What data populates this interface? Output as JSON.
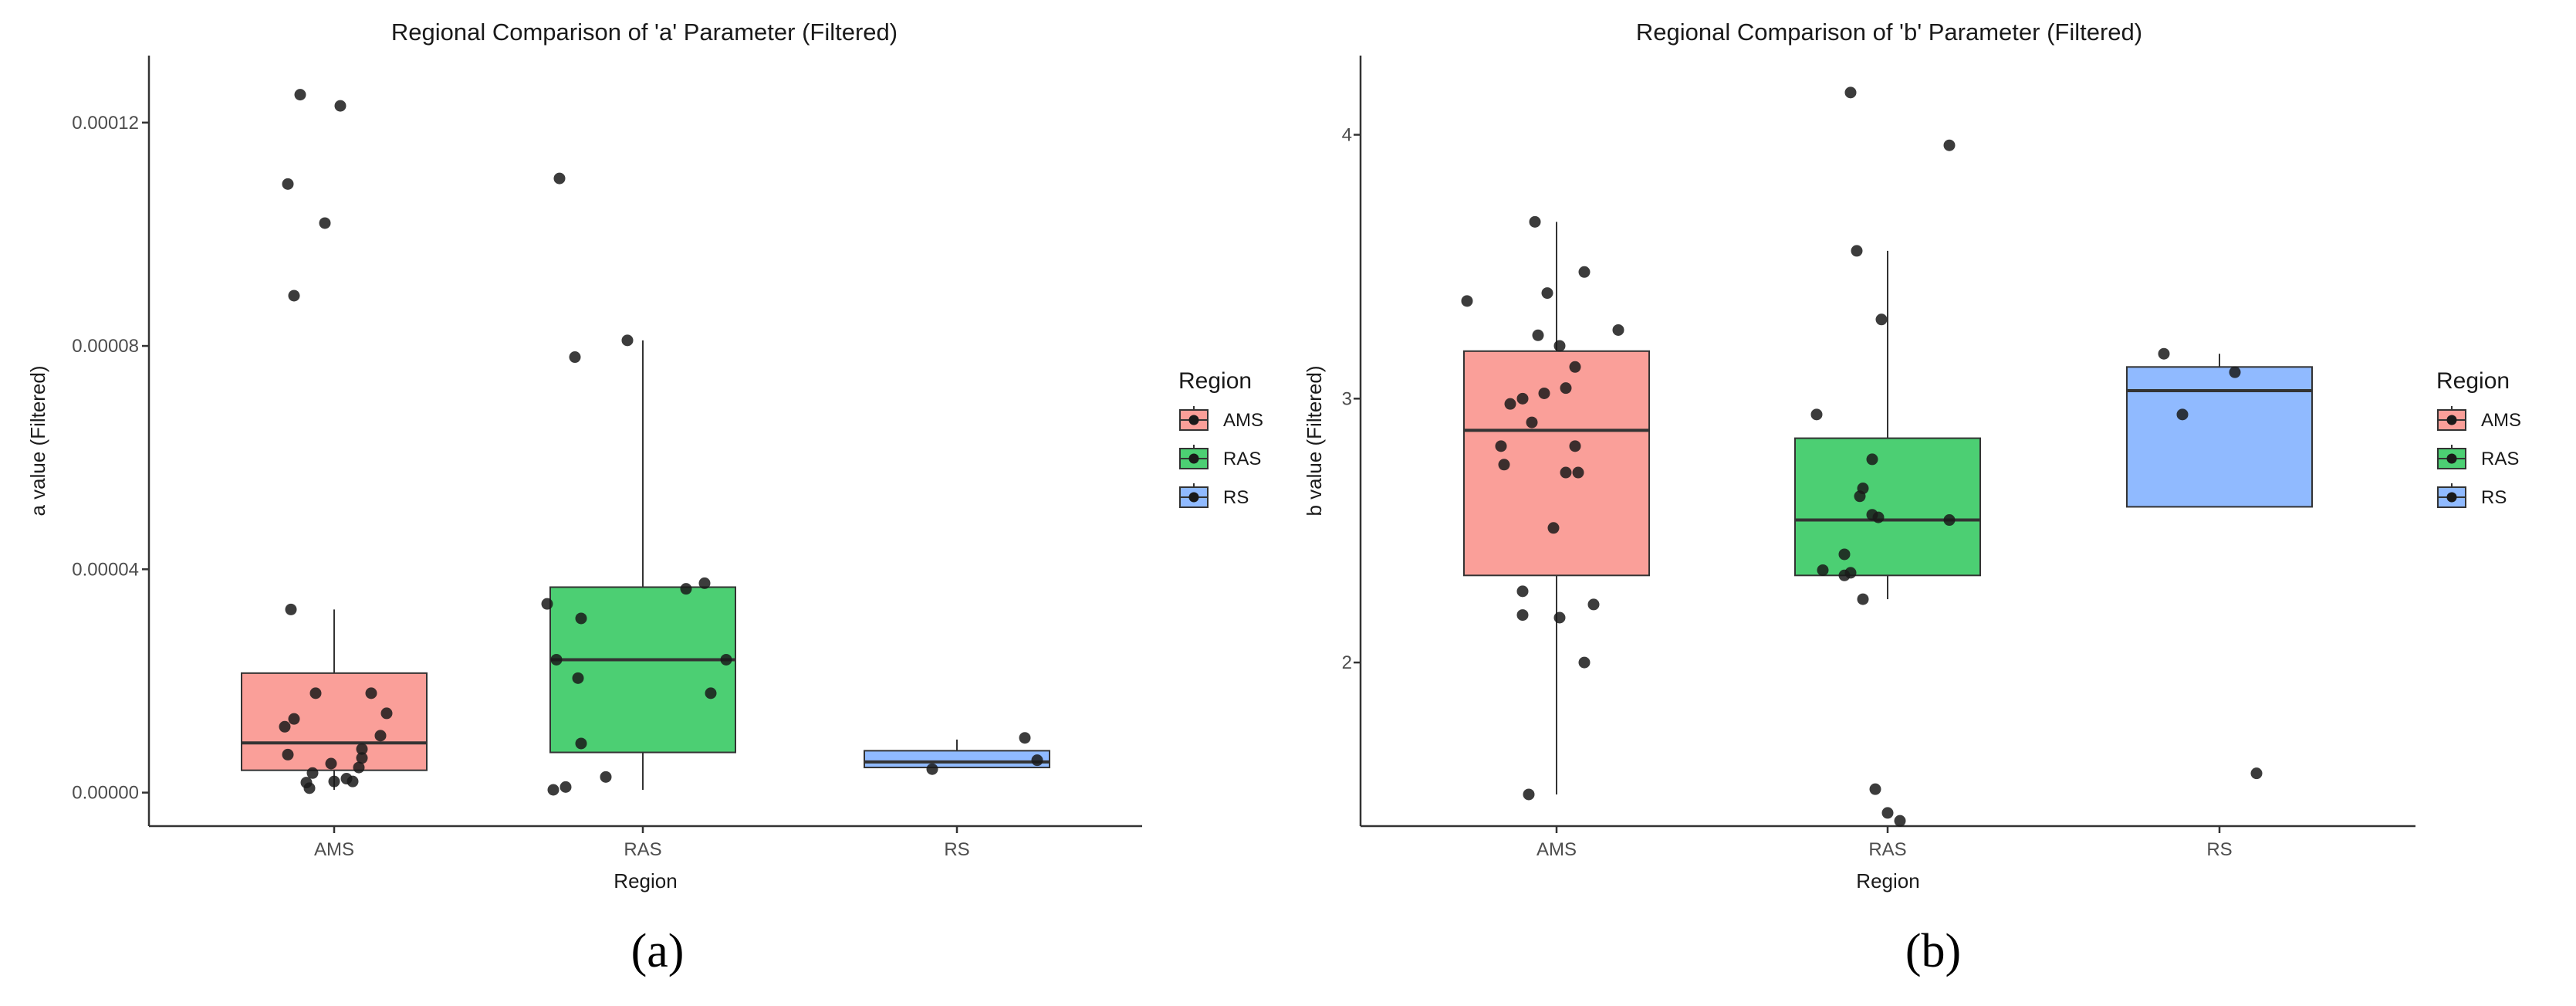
{
  "chart_data": [
    {
      "type": "boxplot",
      "panel": "(a)",
      "title": "Regional Comparison of 'a' Parameter (Filtered)",
      "xlabel": "Region",
      "ylabel": "a value (Filtered)",
      "ylim": [
        -6e-06,
        0.000132
      ],
      "yticks": [
        0,
        4e-05,
        8e-05,
        0.00012
      ],
      "ytick_labels": [
        "0.00000",
        "0.00004",
        "0.00008",
        "0.00012"
      ],
      "categories": [
        "AMS",
        "RAS",
        "RS"
      ],
      "legend": {
        "title": "Region",
        "labels": [
          "AMS",
          "RAS",
          "RS"
        ],
        "position": "right"
      },
      "colors": {
        "AMS": "#F8766D",
        "RAS": "#00BA38",
        "RS": "#619CFF"
      },
      "boxes": [
        {
          "category": "AMS",
          "whisker_low": 5e-07,
          "q1": 4e-06,
          "median": 8.9e-06,
          "q3": 2.14e-05,
          "whisker_high": 3.28e-05
        },
        {
          "category": "RAS",
          "whisker_low": 5e-07,
          "q1": 7.2e-06,
          "median": 2.38e-05,
          "q3": 3.68e-05,
          "whisker_high": 8.1e-05
        },
        {
          "category": "RS",
          "whisker_low": 4.5e-06,
          "q1": 4.5e-06,
          "median": 5.5e-06,
          "q3": 7.5e-06,
          "whisker_high": 9.5e-06
        }
      ],
      "points": [
        {
          "category": "AMS",
          "jitter": -0.11,
          "value": 0.000125
        },
        {
          "category": "AMS",
          "jitter": 0.02,
          "value": 0.000123
        },
        {
          "category": "AMS",
          "jitter": -0.15,
          "value": 0.000109
        },
        {
          "category": "AMS",
          "jitter": -0.03,
          "value": 0.000102
        },
        {
          "category": "AMS",
          "jitter": -0.13,
          "value": 8.9e-05
        },
        {
          "category": "AMS",
          "jitter": -0.14,
          "value": 3.28e-05
        },
        {
          "category": "AMS",
          "jitter": -0.06,
          "value": 1.78e-05
        },
        {
          "category": "AMS",
          "jitter": 0.12,
          "value": 1.78e-05
        },
        {
          "category": "AMS",
          "jitter": 0.17,
          "value": 1.42e-05
        },
        {
          "category": "AMS",
          "jitter": -0.13,
          "value": 1.32e-05
        },
        {
          "category": "AMS",
          "jitter": -0.16,
          "value": 1.18e-05
        },
        {
          "category": "AMS",
          "jitter": 0.15,
          "value": 1.02e-05
        },
        {
          "category": "AMS",
          "jitter": 0.09,
          "value": 7.8e-06
        },
        {
          "category": "AMS",
          "jitter": -0.15,
          "value": 6.8e-06
        },
        {
          "category": "AMS",
          "jitter": 0.09,
          "value": 6.2e-06
        },
        {
          "category": "AMS",
          "jitter": -0.01,
          "value": 5.2e-06
        },
        {
          "category": "AMS",
          "jitter": 0.08,
          "value": 4.5e-06
        },
        {
          "category": "AMS",
          "jitter": -0.07,
          "value": 3.5e-06
        },
        {
          "category": "AMS",
          "jitter": 0.04,
          "value": 2.5e-06
        },
        {
          "category": "AMS",
          "jitter": 0.0,
          "value": 2e-06
        },
        {
          "category": "AMS",
          "jitter": 0.06,
          "value": 2e-06
        },
        {
          "category": "AMS",
          "jitter": -0.09,
          "value": 1.8e-06
        },
        {
          "category": "AMS",
          "jitter": -0.08,
          "value": 8e-07
        },
        {
          "category": "RAS",
          "jitter": -0.27,
          "value": 0.00011
        },
        {
          "category": "RAS",
          "jitter": -0.05,
          "value": 8.1e-05
        },
        {
          "category": "RAS",
          "jitter": -0.22,
          "value": 7.8e-05
        },
        {
          "category": "RAS",
          "jitter": 0.2,
          "value": 3.75e-05
        },
        {
          "category": "RAS",
          "jitter": 0.14,
          "value": 3.65e-05
        },
        {
          "category": "RAS",
          "jitter": -0.31,
          "value": 3.38e-05
        },
        {
          "category": "RAS",
          "jitter": -0.2,
          "value": 3.12e-05
        },
        {
          "category": "RAS",
          "jitter": -0.28,
          "value": 2.38e-05
        },
        {
          "category": "RAS",
          "jitter": 0.27,
          "value": 2.38e-05
        },
        {
          "category": "RAS",
          "jitter": -0.21,
          "value": 2.05e-05
        },
        {
          "category": "RAS",
          "jitter": 0.22,
          "value": 1.78e-05
        },
        {
          "category": "RAS",
          "jitter": -0.2,
          "value": 8.8e-06
        },
        {
          "category": "RAS",
          "jitter": -0.12,
          "value": 2.8e-06
        },
        {
          "category": "RAS",
          "jitter": -0.25,
          "value": 1e-06
        },
        {
          "category": "RAS",
          "jitter": -0.29,
          "value": 5e-07
        },
        {
          "category": "RS",
          "jitter": 0.22,
          "value": 9.8e-06
        },
        {
          "category": "RS",
          "jitter": 0.26,
          "value": 5.8e-06
        },
        {
          "category": "RS",
          "jitter": -0.08,
          "value": 4.2e-06
        }
      ]
    },
    {
      "type": "boxplot",
      "panel": "(b)",
      "title": "Regional Comparison of 'b' Parameter (Filtered)",
      "xlabel": "Region",
      "ylabel": "b value (Filtered)",
      "ylim": [
        1.38,
        4.3
      ],
      "yticks": [
        2,
        3,
        4
      ],
      "ytick_labels": [
        "2",
        "3",
        "4"
      ],
      "categories": [
        "AMS",
        "RAS",
        "RS"
      ],
      "legend": {
        "title": "Region",
        "labels": [
          "AMS",
          "RAS",
          "RS"
        ],
        "position": "right"
      },
      "colors": {
        "AMS": "#F8766D",
        "RAS": "#00BA38",
        "RS": "#619CFF"
      },
      "boxes": [
        {
          "category": "AMS",
          "whisker_low": 1.5,
          "q1": 2.33,
          "median": 2.88,
          "q3": 3.18,
          "whisker_high": 3.67
        },
        {
          "category": "RAS",
          "whisker_low": 2.24,
          "q1": 2.33,
          "median": 2.54,
          "q3": 2.85,
          "whisker_high": 3.56
        },
        {
          "category": "RS",
          "whisker_low": 2.59,
          "q1": 2.59,
          "median": 3.03,
          "q3": 3.12,
          "whisker_high": 3.17
        }
      ],
      "points": [
        {
          "category": "AMS",
          "jitter": -0.07,
          "value": 3.67
        },
        {
          "category": "AMS",
          "jitter": 0.09,
          "value": 3.48
        },
        {
          "category": "AMS",
          "jitter": -0.03,
          "value": 3.4
        },
        {
          "category": "AMS",
          "jitter": -0.29,
          "value": 3.37
        },
        {
          "category": "AMS",
          "jitter": 0.2,
          "value": 3.26
        },
        {
          "category": "AMS",
          "jitter": -0.06,
          "value": 3.24
        },
        {
          "category": "AMS",
          "jitter": 0.01,
          "value": 3.2
        },
        {
          "category": "AMS",
          "jitter": 0.06,
          "value": 3.12
        },
        {
          "category": "AMS",
          "jitter": 0.03,
          "value": 3.04
        },
        {
          "category": "AMS",
          "jitter": -0.04,
          "value": 3.02
        },
        {
          "category": "AMS",
          "jitter": -0.11,
          "value": 3.0
        },
        {
          "category": "AMS",
          "jitter": -0.15,
          "value": 2.98
        },
        {
          "category": "AMS",
          "jitter": -0.08,
          "value": 2.91
        },
        {
          "category": "AMS",
          "jitter": -0.18,
          "value": 2.82
        },
        {
          "category": "AMS",
          "jitter": 0.06,
          "value": 2.82
        },
        {
          "category": "AMS",
          "jitter": -0.17,
          "value": 2.75
        },
        {
          "category": "AMS",
          "jitter": 0.03,
          "value": 2.72
        },
        {
          "category": "AMS",
          "jitter": 0.07,
          "value": 2.72
        },
        {
          "category": "AMS",
          "jitter": -0.01,
          "value": 2.51
        },
        {
          "category": "AMS",
          "jitter": -0.11,
          "value": 2.27
        },
        {
          "category": "AMS",
          "jitter": 0.12,
          "value": 2.22
        },
        {
          "category": "AMS",
          "jitter": 0.01,
          "value": 2.17
        },
        {
          "category": "AMS",
          "jitter": -0.11,
          "value": 2.18
        },
        {
          "category": "AMS",
          "jitter": 0.09,
          "value": 2.0
        },
        {
          "category": "AMS",
          "jitter": -0.09,
          "value": 1.5
        },
        {
          "category": "RAS",
          "jitter": -0.12,
          "value": 4.16
        },
        {
          "category": "RAS",
          "jitter": 0.2,
          "value": 3.96
        },
        {
          "category": "RAS",
          "jitter": -0.1,
          "value": 3.56
        },
        {
          "category": "RAS",
          "jitter": -0.02,
          "value": 3.3
        },
        {
          "category": "RAS",
          "jitter": -0.23,
          "value": 2.94
        },
        {
          "category": "RAS",
          "jitter": -0.05,
          "value": 2.77
        },
        {
          "category": "RAS",
          "jitter": -0.08,
          "value": 2.66
        },
        {
          "category": "RAS",
          "jitter": -0.09,
          "value": 2.63
        },
        {
          "category": "RAS",
          "jitter": -0.05,
          "value": 2.56
        },
        {
          "category": "RAS",
          "jitter": -0.03,
          "value": 2.55
        },
        {
          "category": "RAS",
          "jitter": 0.2,
          "value": 2.54
        },
        {
          "category": "RAS",
          "jitter": -0.14,
          "value": 2.41
        },
        {
          "category": "RAS",
          "jitter": -0.21,
          "value": 2.35
        },
        {
          "category": "RAS",
          "jitter": -0.14,
          "value": 2.33
        },
        {
          "category": "RAS",
          "jitter": -0.12,
          "value": 2.34
        },
        {
          "category": "RAS",
          "jitter": -0.08,
          "value": 2.24
        },
        {
          "category": "RAS",
          "jitter": -0.04,
          "value": 1.52
        },
        {
          "category": "RAS",
          "jitter": 0.0,
          "value": 1.43
        },
        {
          "category": "RAS",
          "jitter": 0.04,
          "value": 1.4
        },
        {
          "category": "RS",
          "jitter": -0.18,
          "value": 3.17
        },
        {
          "category": "RS",
          "jitter": 0.05,
          "value": 3.1
        },
        {
          "category": "RS",
          "jitter": -0.12,
          "value": 2.94
        },
        {
          "category": "RS",
          "jitter": 0.12,
          "value": 1.58
        }
      ]
    }
  ]
}
